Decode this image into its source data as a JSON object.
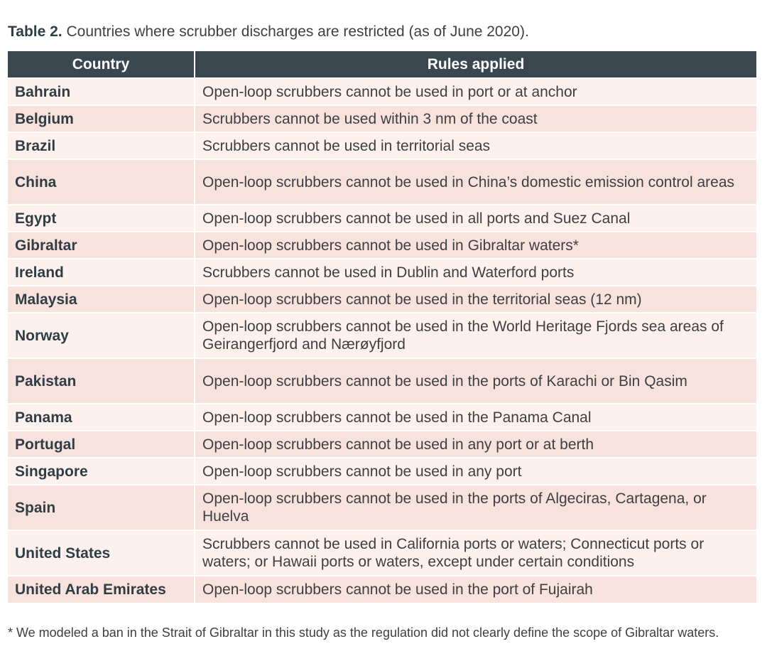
{
  "caption": {
    "label": "Table 2.",
    "text": "Countries where scrubber discharges are restricted (as of June 2020)."
  },
  "table": {
    "headers": [
      "Country",
      "Rules applied"
    ],
    "rows": [
      {
        "country": "Bahrain",
        "rule": "Open-loop scrubbers cannot be used in port or at anchor"
      },
      {
        "country": "Belgium",
        "rule": "Scrubbers cannot be used within 3 nm of the coast"
      },
      {
        "country": "Brazil",
        "rule": "Scrubbers cannot be used in territorial seas"
      },
      {
        "country": "China",
        "rule": "Open-loop scrubbers cannot be used in China’s domestic emission control areas"
      },
      {
        "country": "Egypt",
        "rule": "Open-loop scrubbers cannot be used in all ports and Suez Canal"
      },
      {
        "country": "Gibraltar",
        "rule": "Open-loop scrubbers cannot be used in Gibraltar waters*"
      },
      {
        "country": "Ireland",
        "rule": "Scrubbers cannot be used in Dublin and Waterford ports"
      },
      {
        "country": "Malaysia",
        "rule": "Open-loop scrubbers cannot be used in the territorial seas (12 nm)"
      },
      {
        "country": "Norway",
        "rule": "Open-loop scrubbers cannot be used in the World Heritage Fjords sea areas of Geirangerfjord and Nærøyfjord"
      },
      {
        "country": "Pakistan",
        "rule": "Open-loop scrubbers cannot be used in the ports of Karachi or Bin Qasim"
      },
      {
        "country": "Panama",
        "rule": "Open-loop scrubbers cannot be used in the Panama Canal"
      },
      {
        "country": "Portugal",
        "rule": "Open-loop scrubbers cannot be used in any port or at berth"
      },
      {
        "country": "Singapore",
        "rule": "Open-loop scrubbers cannot be used in any port"
      },
      {
        "country": "Spain",
        "rule": "Open-loop scrubbers cannot be used in the ports of Algeciras, Cartagena, or Huelva"
      },
      {
        "country": "United States",
        "rule": "Scrubbers cannot be used in California ports or waters; Connecticut ports or waters; or Hawaii ports or waters, except under certain conditions"
      },
      {
        "country": "United Arab Emirates",
        "rule": "Open-loop scrubbers cannot be used in the port of Fujairah"
      }
    ]
  },
  "footnote": "* We modeled a ban in the Strait of Gibraltar in this study as the regulation did not clearly define the scope of Gibraltar waters."
}
